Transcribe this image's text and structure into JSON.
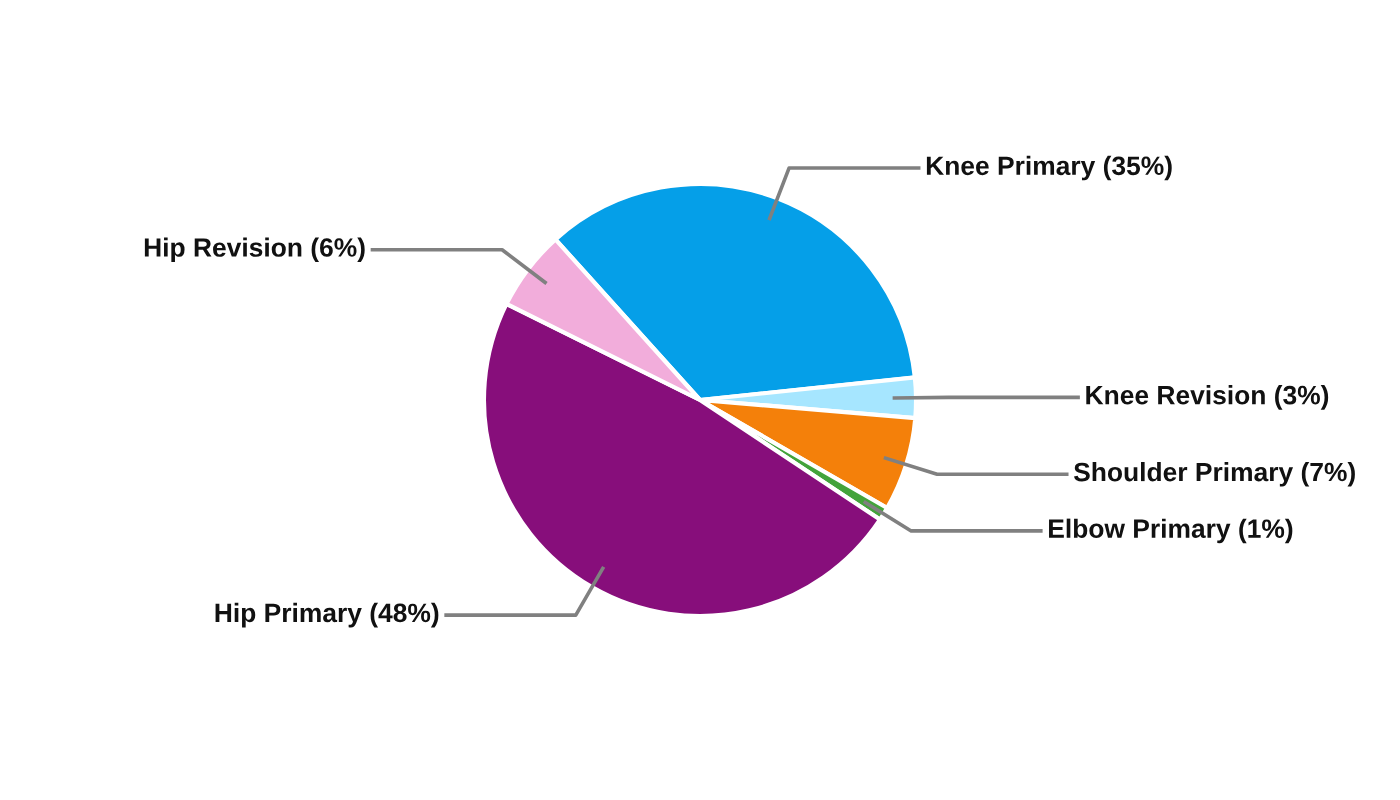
{
  "chart_data": {
    "type": "pie",
    "categories": [
      "Knee Primary (35%)",
      "Knee Revision (3%)",
      "Shoulder Primary (7%)",
      "Elbow Primary (1%)",
      "Hip Primary (48%)",
      "Hip Revision (6%)"
    ],
    "values": [
      35,
      3,
      7,
      1,
      48,
      6
    ],
    "colors": [
      "#059fe8",
      "#a6e6ff",
      "#f4800a",
      "#43a33b",
      "#870e7b",
      "#f2addb"
    ],
    "legend": false
  }
}
